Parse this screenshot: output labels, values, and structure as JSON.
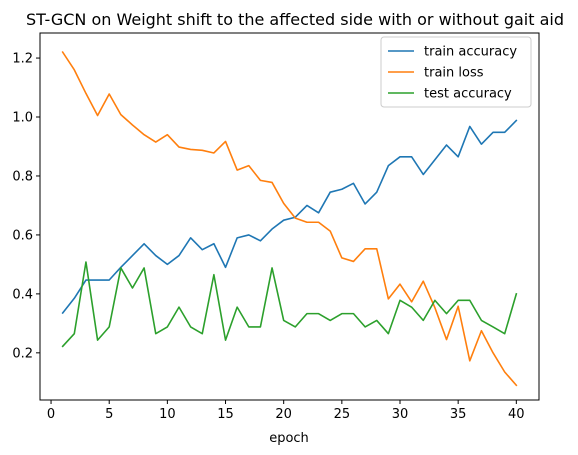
{
  "chart_data": {
    "type": "line",
    "title": "ST-GCN on Weight shift to the affected side with or without gait aid",
    "xlabel": "epoch",
    "ylabel": "",
    "xlim": [
      -0.95,
      41.95
    ],
    "ylim": [
      0.04,
      1.285
    ],
    "xticks": [
      0,
      5,
      10,
      15,
      20,
      25,
      30,
      35,
      40
    ],
    "yticks": [
      0.2,
      0.4,
      0.6,
      0.8,
      1.0,
      1.2
    ],
    "grid": false,
    "legend_position": "top-right",
    "x": [
      1,
      2,
      3,
      4,
      5,
      6,
      7,
      8,
      9,
      10,
      11,
      12,
      13,
      14,
      15,
      16,
      17,
      18,
      19,
      20,
      21,
      22,
      23,
      24,
      25,
      26,
      27,
      28,
      29,
      30,
      31,
      32,
      33,
      34,
      35,
      36,
      37,
      38,
      39,
      40
    ],
    "series": [
      {
        "name": "train accuracy",
        "color": "#1f77b4",
        "values": [
          0.335,
          0.385,
          0.447,
          0.447,
          0.447,
          0.49,
          0.53,
          0.57,
          0.53,
          0.5,
          0.53,
          0.59,
          0.55,
          0.57,
          0.49,
          0.59,
          0.6,
          0.58,
          0.62,
          0.65,
          0.66,
          0.7,
          0.675,
          0.745,
          0.755,
          0.775,
          0.705,
          0.745,
          0.835,
          0.865,
          0.865,
          0.805,
          0.855,
          0.905,
          0.865,
          0.968,
          0.908,
          0.948,
          0.948,
          0.988
        ]
      },
      {
        "name": "train loss",
        "color": "#ff7f0e",
        "values": [
          1.22,
          1.16,
          1.08,
          1.005,
          1.078,
          1.008,
          0.973,
          0.94,
          0.915,
          0.94,
          0.898,
          0.89,
          0.887,
          0.878,
          0.917,
          0.82,
          0.835,
          0.785,
          0.778,
          0.707,
          0.657,
          0.643,
          0.643,
          0.613,
          0.522,
          0.51,
          0.553,
          0.553,
          0.383,
          0.433,
          0.373,
          0.443,
          0.353,
          0.245,
          0.358,
          0.173,
          0.275,
          0.2,
          0.135,
          0.09
        ]
      },
      {
        "name": "test accuracy",
        "color": "#2ca02c",
        "values": [
          0.222,
          0.265,
          0.508,
          0.243,
          0.288,
          0.488,
          0.42,
          0.488,
          0.265,
          0.288,
          0.355,
          0.288,
          0.265,
          0.465,
          0.243,
          0.355,
          0.288,
          0.288,
          0.488,
          0.31,
          0.288,
          0.333,
          0.333,
          0.31,
          0.333,
          0.333,
          0.288,
          0.31,
          0.265,
          0.378,
          0.355,
          0.31,
          0.378,
          0.333,
          0.378,
          0.378,
          0.31,
          0.288,
          0.265,
          0.4
        ]
      }
    ]
  }
}
